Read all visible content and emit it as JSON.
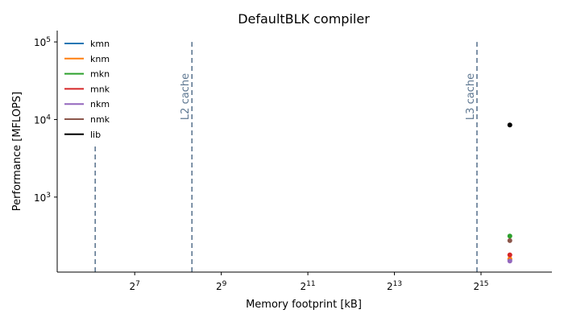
{
  "chart_data": {
    "type": "scatter",
    "title": "DefaultBLK compiler",
    "xlabel": "Memory footprint [kB]",
    "ylabel": "Performance [MFLOPS]",
    "xscale": "log2",
    "yscale": "log10",
    "xlim": [
      37,
      102000
    ],
    "ylim": [
      108,
      140000
    ],
    "x_ticks": [
      {
        "value": 128,
        "base": "2",
        "exp": "7"
      },
      {
        "value": 512,
        "base": "2",
        "exp": "9"
      },
      {
        "value": 2048,
        "base": "2",
        "exp": "11"
      },
      {
        "value": 8192,
        "base": "2",
        "exp": "13"
      },
      {
        "value": 32768,
        "base": "2",
        "exp": "15"
      }
    ],
    "y_ticks": [
      {
        "value": 1000,
        "base": "10",
        "exp": "3"
      },
      {
        "value": 10000,
        "base": "10",
        "exp": "4"
      },
      {
        "value": 100000,
        "base": "10",
        "exp": "5"
      }
    ],
    "grid": false,
    "legend_position": "top-left",
    "series": [
      {
        "name": "kmn",
        "color": "#1f77b4",
        "points": [
          [
            52000,
            155
          ]
        ]
      },
      {
        "name": "knm",
        "color": "#ff7f0e",
        "points": [
          [
            52000,
            160
          ]
        ]
      },
      {
        "name": "mkn",
        "color": "#2ca02c",
        "points": [
          [
            52000,
            315
          ]
        ]
      },
      {
        "name": "mnk",
        "color": "#d62728",
        "points": [
          [
            52000,
            180
          ]
        ]
      },
      {
        "name": "nkm",
        "color": "#9467bd",
        "points": [
          [
            52000,
            150
          ]
        ]
      },
      {
        "name": "nmk",
        "color": "#8c564b",
        "points": [
          [
            52000,
            275
          ]
        ]
      },
      {
        "name": "lib",
        "color": "#000000",
        "points": [
          [
            52000,
            8500
          ]
        ]
      }
    ],
    "reference_lines": [
      {
        "x": 68,
        "y_top": 4600,
        "label": "",
        "color": "#5f7892"
      },
      {
        "x": 320,
        "y_top": 100000,
        "label": "L2 cache",
        "color": "#5f7892"
      },
      {
        "x": 30720,
        "y_top": 100000,
        "label": "L3 cache",
        "color": "#5f7892"
      }
    ]
  }
}
